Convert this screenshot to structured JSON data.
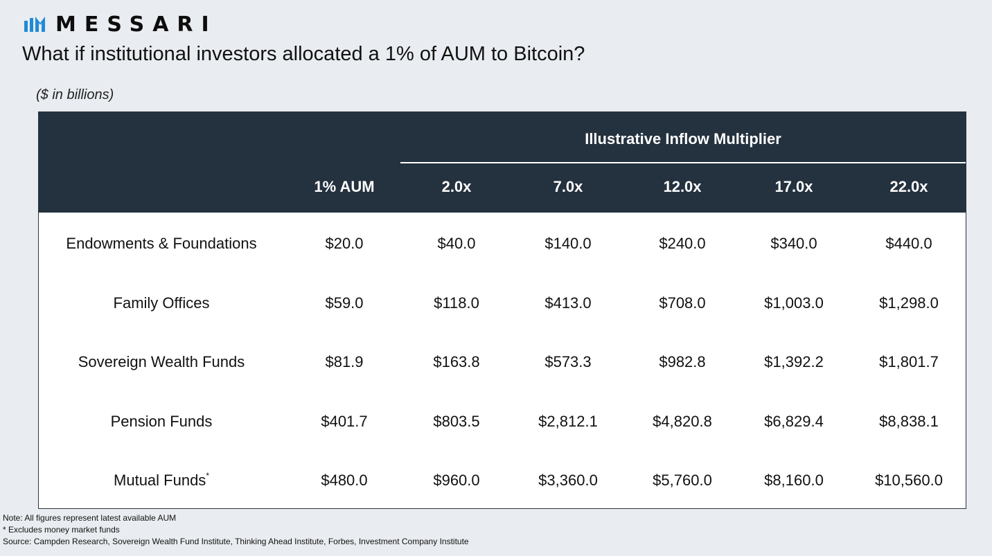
{
  "brand": {
    "name": "MESSARI",
    "colors": {
      "icon": "#1f8bd6",
      "text": "#0d0d0d",
      "header": "#24313e"
    }
  },
  "title": "What if institutional investors allocated a 1% of AUM to Bitcoin?",
  "units": "($ in billions)",
  "chart_data": {
    "type": "table",
    "title": "What if institutional investors allocated a 1% of AUM to Bitcoin?",
    "subtitle": "($ in billions)",
    "group_header": "Illustrative Inflow Multiplier",
    "columns": [
      "1% AUM",
      "2.0x",
      "7.0x",
      "12.0x",
      "17.0x",
      "22.0x"
    ],
    "rows": [
      {
        "label": "Endowments & Foundations",
        "values": [
          "$20.0",
          "$40.0",
          "$140.0",
          "$240.0",
          "$340.0",
          "$440.0"
        ]
      },
      {
        "label": "Family Offices",
        "values": [
          "$59.0",
          "$118.0",
          "$413.0",
          "$708.0",
          "$1,003.0",
          "$1,298.0"
        ]
      },
      {
        "label": "Sovereign Wealth Funds",
        "values": [
          "$81.9",
          "$163.8",
          "$573.3",
          "$982.8",
          "$1,392.2",
          "$1,801.7"
        ]
      },
      {
        "label": "Pension Funds",
        "values": [
          "$401.7",
          "$803.5",
          "$2,812.1",
          "$4,820.8",
          "$6,829.4",
          "$8,838.1"
        ]
      },
      {
        "label": "Mutual Funds",
        "label_suffix": "*",
        "values": [
          "$480.0",
          "$960.0",
          "$3,360.0",
          "$5,760.0",
          "$8,160.0",
          "$10,560.0"
        ]
      }
    ]
  },
  "footnotes": {
    "note": "Note: All figures represent latest available AUM",
    "exclusion": "* Excludes money market funds",
    "source": "Source: Campden Research, Sovereign Wealth Fund Institute, Thinking Ahead Institute, Forbes, Investment Company Institute"
  }
}
